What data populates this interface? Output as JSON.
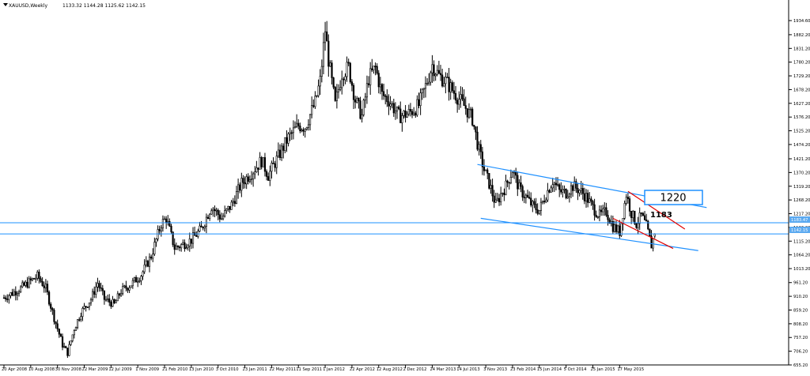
{
  "header": {
    "symbol_label": "XAUUSD,Weekly",
    "ohlc_values": "1133.32 1144.28 1125.62 1142.15"
  },
  "annotations": {
    "target_box_label": "1220",
    "level_label": "1183"
  },
  "price_badges": {
    "upper": "1183.47",
    "lower": "1142.15"
  },
  "colors": {
    "background": "#ffffff",
    "candles": "#000000",
    "channel_lines": "#1e90ff",
    "wedge_lines": "#e00000",
    "horizontal_lines": "#1e90ff",
    "badge_fill": "#5aa9f0",
    "axis": "#000000"
  },
  "chart_data": {
    "type": "candlestick",
    "title": "XAUUSD,Weekly",
    "timeframe": "Weekly",
    "ylim": [
      655.2,
      1970
    ],
    "y_ticks": [
      1934.6,
      1882.2,
      1831.2,
      1780.2,
      1729.2,
      1678.2,
      1627.2,
      1576.2,
      1525.2,
      1474.2,
      1421.2,
      1370.2,
      1319.2,
      1268.2,
      1217.2,
      1166.2,
      1115.2,
      1064.2,
      1013.2,
      961.2,
      910.2,
      859.2,
      808.2,
      757.2,
      706.2,
      655.2
    ],
    "x_labels": [
      "20 Apr 2008",
      "10 Aug 2008",
      "30 Nov 2008",
      "22 Mar 2009",
      "12 Jul 2009",
      "1 Nov 2009",
      "21 Feb 2010",
      "13 Jun 2010",
      "3 Oct 2010",
      "23 Jan 2011",
      "22 May 2011",
      "11 Sep 2011",
      "1 Jan 2012",
      "22 Apr 2012",
      "12 Aug 2012",
      "2 Dec 2012",
      "24 Mar 2013",
      "14 Jul 2013",
      "3 Nov 2013",
      "23 Feb 2014",
      "15 Jun 2014",
      "5 Oct 2014",
      "25 Jan 2015",
      "17 May 2015"
    ],
    "weeks": 390,
    "last_candle": {
      "open": 1133.32,
      "high": 1144.28,
      "low": 1125.62,
      "close": 1142.15
    },
    "price_path": [
      {
        "week": 0,
        "price": 905
      },
      {
        "week": 10,
        "price": 940
      },
      {
        "week": 20,
        "price": 985
      },
      {
        "week": 25,
        "price": 940
      },
      {
        "week": 30,
        "price": 830
      },
      {
        "week": 35,
        "price": 730
      },
      {
        "week": 38,
        "price": 700
      },
      {
        "week": 42,
        "price": 790
      },
      {
        "week": 46,
        "price": 850
      },
      {
        "week": 52,
        "price": 900
      },
      {
        "week": 56,
        "price": 960
      },
      {
        "week": 60,
        "price": 900
      },
      {
        "week": 66,
        "price": 880
      },
      {
        "week": 70,
        "price": 930
      },
      {
        "week": 76,
        "price": 955
      },
      {
        "week": 82,
        "price": 990
      },
      {
        "week": 88,
        "price": 1060
      },
      {
        "week": 94,
        "price": 1180
      },
      {
        "week": 97,
        "price": 1200
      },
      {
        "week": 102,
        "price": 1090
      },
      {
        "week": 106,
        "price": 1100
      },
      {
        "week": 112,
        "price": 1120
      },
      {
        "week": 118,
        "price": 1160
      },
      {
        "week": 124,
        "price": 1245
      },
      {
        "week": 130,
        "price": 1200
      },
      {
        "week": 136,
        "price": 1250
      },
      {
        "week": 142,
        "price": 1330
      },
      {
        "week": 148,
        "price": 1370
      },
      {
        "week": 154,
        "price": 1415
      },
      {
        "week": 158,
        "price": 1360
      },
      {
        "week": 164,
        "price": 1430
      },
      {
        "week": 170,
        "price": 1500
      },
      {
        "week": 176,
        "price": 1545
      },
      {
        "week": 180,
        "price": 1540
      },
      {
        "week": 186,
        "price": 1630
      },
      {
        "week": 189,
        "price": 1710
      },
      {
        "week": 192,
        "price": 1900
      },
      {
        "week": 194,
        "price": 1790
      },
      {
        "week": 198,
        "price": 1620
      },
      {
        "week": 202,
        "price": 1740
      },
      {
        "week": 206,
        "price": 1760
      },
      {
        "week": 210,
        "price": 1640
      },
      {
        "week": 214,
        "price": 1580
      },
      {
        "week": 218,
        "price": 1720
      },
      {
        "week": 222,
        "price": 1760
      },
      {
        "week": 226,
        "price": 1660
      },
      {
        "week": 230,
        "price": 1640
      },
      {
        "week": 236,
        "price": 1580
      },
      {
        "week": 242,
        "price": 1590
      },
      {
        "week": 248,
        "price": 1620
      },
      {
        "week": 252,
        "price": 1690
      },
      {
        "week": 256,
        "price": 1770
      },
      {
        "week": 260,
        "price": 1730
      },
      {
        "week": 264,
        "price": 1710
      },
      {
        "week": 270,
        "price": 1660
      },
      {
        "week": 276,
        "price": 1610
      },
      {
        "week": 280,
        "price": 1570
      },
      {
        "week": 284,
        "price": 1450
      },
      {
        "week": 287,
        "price": 1380
      },
      {
        "week": 290,
        "price": 1330
      },
      {
        "week": 294,
        "price": 1250
      },
      {
        "week": 297,
        "price": 1290
      },
      {
        "week": 300,
        "price": 1320
      },
      {
        "week": 304,
        "price": 1380
      },
      {
        "week": 308,
        "price": 1310
      },
      {
        "week": 312,
        "price": 1280
      },
      {
        "week": 316,
        "price": 1245
      },
      {
        "week": 320,
        "price": 1230
      },
      {
        "week": 324,
        "price": 1290
      },
      {
        "week": 328,
        "price": 1340
      },
      {
        "week": 332,
        "price": 1300
      },
      {
        "week": 336,
        "price": 1295
      },
      {
        "week": 340,
        "price": 1320
      },
      {
        "week": 344,
        "price": 1305
      },
      {
        "week": 348,
        "price": 1280
      },
      {
        "week": 352,
        "price": 1240
      },
      {
        "week": 356,
        "price": 1210
      },
      {
        "week": 360,
        "price": 1225
      },
      {
        "week": 364,
        "price": 1170
      },
      {
        "week": 368,
        "price": 1150
      },
      {
        "week": 370,
        "price": 1220
      },
      {
        "week": 372,
        "price": 1290
      },
      {
        "week": 375,
        "price": 1220
      },
      {
        "week": 378,
        "price": 1180
      },
      {
        "week": 381,
        "price": 1210
      },
      {
        "week": 384,
        "price": 1170
      },
      {
        "week": 387,
        "price": 1100
      },
      {
        "week": 389,
        "price": 1142
      }
    ],
    "trendlines": [
      {
        "name": "channel-upper",
        "color": "blue",
        "from": {
          "week": 283,
          "price": 1400
        },
        "to": {
          "week": 420,
          "price": 1240
        }
      },
      {
        "name": "channel-lower",
        "color": "blue",
        "from": {
          "week": 285,
          "price": 1200
        },
        "to": {
          "week": 415,
          "price": 1080
        }
      },
      {
        "name": "wedge-upper",
        "color": "red",
        "from": {
          "week": 373,
          "price": 1300
        },
        "to": {
          "week": 407,
          "price": 1160
        }
      },
      {
        "name": "wedge-lower",
        "color": "red",
        "from": {
          "week": 364,
          "price": 1200
        },
        "to": {
          "week": 400,
          "price": 1088
        }
      }
    ],
    "horizontal_levels": [
      1183.47,
      1142.15
    ],
    "grid": false,
    "legend": "none"
  }
}
